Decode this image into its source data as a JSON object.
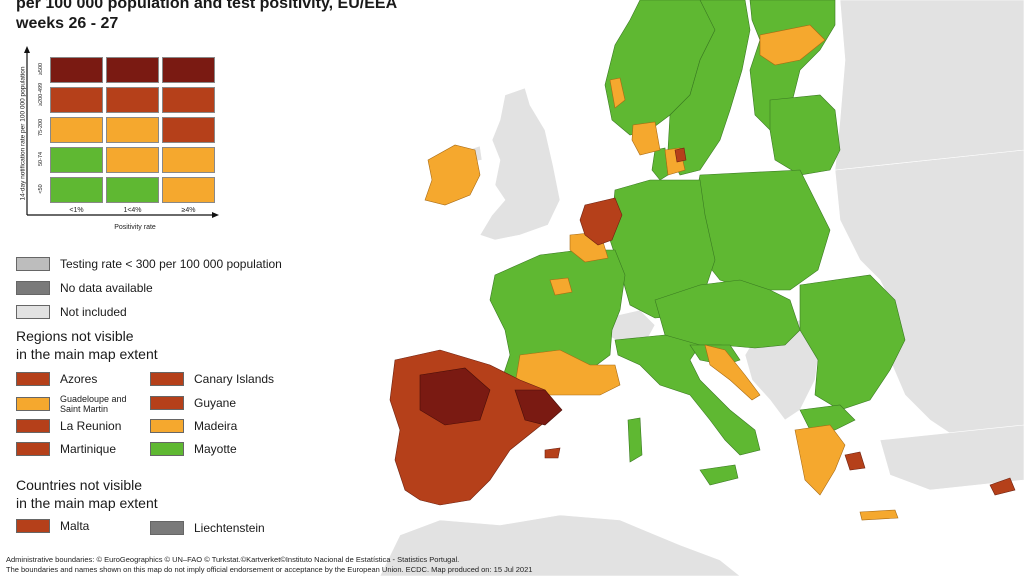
{
  "title": {
    "line1": "per 100 000 population and test positivity, EU/EEA",
    "line2": "weeks 26 - 27"
  },
  "matrix": {
    "y_axis_label": "14-day notification rate per 100 000 population",
    "x_axis_label": "Positivity rate",
    "row_labels": [
      "≥500",
      "≥200-499",
      "75-200",
      "50-74",
      "<50"
    ],
    "col_labels": [
      "<1%",
      "1<4%",
      "≥4%"
    ]
  },
  "status_legend": {
    "testing_rate": "Testing rate < 300 per 100 000 population",
    "no_data": "No data available",
    "not_included": "Not included"
  },
  "regions_section": {
    "heading_line1": "Regions not visible",
    "heading_line2": "in the main map extent",
    "items": [
      {
        "label": "Azores",
        "color": "#b5401a"
      },
      {
        "label": "Canary Islands",
        "color": "#b5401a"
      },
      {
        "label": "Guadeloupe and Saint Martin",
        "color": "#f5a82e"
      },
      {
        "label": "Guyane",
        "color": "#b5401a"
      },
      {
        "label": "La Reunion",
        "color": "#b5401a"
      },
      {
        "label": "Madeira",
        "color": "#f5a82e"
      },
      {
        "label": "Martinique",
        "color": "#b5401a"
      },
      {
        "label": "Mayotte",
        "color": "#5fb832"
      }
    ]
  },
  "countries_section": {
    "heading_line1": "Countries not visible",
    "heading_line2": "in the main map extent",
    "items": [
      {
        "label": "Malta",
        "color": "#b5401a"
      },
      {
        "label": "Liechtenstein",
        "color": "#7a7a7a"
      }
    ]
  },
  "footer": {
    "line1": "Administrative boundaries: © EuroGeographics © UN–FAO © Turkstat.©Kartverket©Instituto Nacional de Estatística - Statistics Portugal.",
    "line2": "The boundaries and names shown on this map do not imply official endorsement or acceptance by the European Union. ECDC. Map produced on: 15 Jul 2021"
  },
  "colors": {
    "dark_red": "#7a1a12",
    "red": "#b5401a",
    "orange": "#f5a82e",
    "green": "#5fb832",
    "grey_testing": "#bdbdbd",
    "grey_nodata": "#7a7a7a",
    "grey_notincluded": "#e2e2e2",
    "sea": "#ffffff"
  }
}
